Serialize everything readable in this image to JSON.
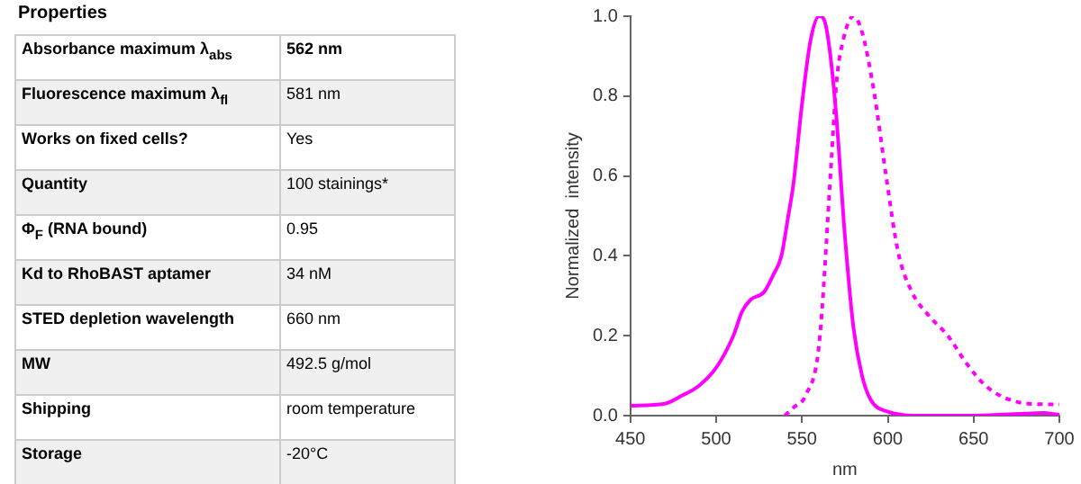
{
  "chart_data": [
    {
      "type": "other",
      "title": "Properties",
      "categories": [
        "Absorbance maximum λ$_{abs}$",
        "Fluorescence maximum λ$_{fl}$",
        "Works on fixed cells?",
        "Quantity",
        "Φ$_{F}$ (RNA bound)",
        "Kd to RhoBAST aptamer",
        "STED depletion wavelength",
        "MW",
        "Shipping",
        "Storage"
      ],
      "value_labels": [
        "562 nm",
        "581 nm",
        "Yes",
        "100 stainings*",
        "0.95",
        "34 nM",
        "660 nm",
        "492.5 g/mol",
        "room temperature",
        "-20°C"
      ]
    },
    {
      "type": "line",
      "xlabel": "nm",
      "ylabel": "Normalized  intensity",
      "xlim": [
        450,
        700
      ],
      "xticks": [
        450,
        500,
        550,
        600,
        650,
        700
      ],
      "ylim": [
        0,
        1
      ],
      "yticks": [
        {
          "value": 0,
          "label": "0.0"
        },
        {
          "value": 0.2,
          "label": "0.2"
        },
        {
          "value": 0.4,
          "label": "0.4"
        },
        {
          "value": 0.6,
          "label": "0.6"
        },
        {
          "value": 0.8,
          "label": "0.8"
        },
        {
          "value": 1,
          "label": "1.0"
        }
      ],
      "grid": false,
      "legend": false,
      "marker": "none",
      "series": [
        {
          "color": "#ff00ff",
          "line_style": "solid",
          "x": [
            450,
            470,
            480,
            490,
            500,
            510,
            515,
            520,
            528,
            533,
            538,
            542,
            545,
            550,
            555,
            560,
            563,
            566,
            570,
            575,
            580,
            585,
            590,
            600,
            620,
            650,
            680,
            690,
            700
          ],
          "values": [
            0.025,
            0.03,
            0.05,
            0.075,
            0.12,
            0.2,
            0.26,
            0.29,
            0.31,
            0.35,
            0.4,
            0.5,
            0.58,
            0.78,
            0.94,
            1.0,
            0.99,
            0.92,
            0.75,
            0.45,
            0.22,
            0.1,
            0.04,
            0.01,
            0,
            0,
            0.005,
            0.007,
            0.002
          ]
        },
        {
          "color": "#ff00ff",
          "line_style": "dashed",
          "x": [
            540,
            545,
            552,
            560,
            567,
            570,
            574,
            580,
            585,
            592,
            599,
            606,
            614,
            624,
            635,
            646,
            657,
            668,
            682,
            700
          ],
          "values": [
            0,
            0.02,
            0.05,
            0.18,
            0.63,
            0.83,
            0.94,
            1.0,
            0.96,
            0.81,
            0.6,
            0.41,
            0.31,
            0.25,
            0.2,
            0.13,
            0.075,
            0.045,
            0.03,
            0.028
          ]
        }
      ]
    }
  ]
}
